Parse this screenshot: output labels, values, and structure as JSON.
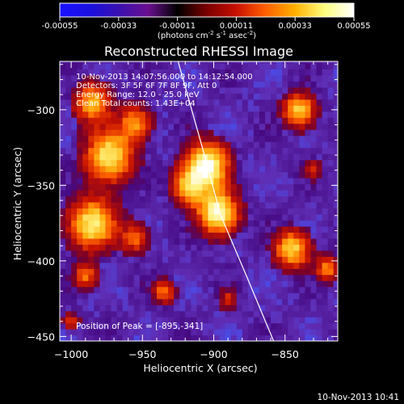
{
  "colorbar": {
    "ticks": [
      "-0.00055",
      "-0.00033",
      "-0.00011",
      "0.00011",
      "0.00033",
      "0.00055"
    ],
    "tick_values": [
      -0.00055,
      -0.00033,
      -0.00011,
      0.00011,
      0.00033,
      0.00055
    ],
    "unit_base": "(photons cm",
    "unit_e1": "-2",
    "unit_mid": " s",
    "unit_e2": "-1",
    "unit_mid2": " asec",
    "unit_e3": "-2",
    "unit_end": ")",
    "colors": [
      "#1a10ff",
      "#1a10e0",
      "#3a10b0",
      "#6a1090",
      "#000000",
      "#7a0000",
      "#c81000",
      "#ff6000",
      "#ffb000",
      "#ffff80",
      "#ffffff"
    ]
  },
  "chart_data": {
    "type": "heatmap",
    "title": "Reconstructed RHESSI Image",
    "xlabel": "Heliocentric X (arcsec)",
    "ylabel": "Heliocentric Y (arcsec)",
    "xlim": [
      -1008,
      -813
    ],
    "ylim": [
      -453,
      -268
    ],
    "x_ticks": [
      -1000,
      -950,
      -900,
      -850
    ],
    "x_tick_labels": [
      "−1000",
      "−950",
      "−900",
      "−850"
    ],
    "y_ticks": [
      -450,
      -400,
      -350,
      -300
    ],
    "y_tick_labels": [
      "−450",
      "−400",
      "−350",
      "−300"
    ],
    "value_range": [
      -0.00055,
      0.00055
    ],
    "sources": [
      {
        "x": -905,
        "y": -337,
        "sigma": 11,
        "amp": 1.0
      },
      {
        "x": -897,
        "y": -368,
        "sigma": 10,
        "amp": 0.95
      },
      {
        "x": -918,
        "y": -352,
        "sigma": 8,
        "amp": 0.6
      },
      {
        "x": -973,
        "y": -330,
        "sigma": 12,
        "amp": 0.85
      },
      {
        "x": -985,
        "y": -295,
        "sigma": 9,
        "amp": 0.7
      },
      {
        "x": -955,
        "y": -308,
        "sigma": 8,
        "amp": 0.55
      },
      {
        "x": -985,
        "y": -375,
        "sigma": 12,
        "amp": 0.85
      },
      {
        "x": -955,
        "y": -385,
        "sigma": 7,
        "amp": 0.45
      },
      {
        "x": -990,
        "y": -410,
        "sigma": 6,
        "amp": 0.5
      },
      {
        "x": -840,
        "y": -300,
        "sigma": 8,
        "amp": 0.75
      },
      {
        "x": -830,
        "y": -340,
        "sigma": 5,
        "amp": 0.35
      },
      {
        "x": -845,
        "y": -392,
        "sigma": 9,
        "amp": 0.75
      },
      {
        "x": -820,
        "y": -405,
        "sigma": 6,
        "amp": 0.55
      },
      {
        "x": -935,
        "y": -420,
        "sigma": 6,
        "amp": 0.5
      },
      {
        "x": -890,
        "y": -425,
        "sigma": 5,
        "amp": 0.35
      },
      {
        "x": -1000,
        "y": -440,
        "sigma": 4,
        "amp": 0.45
      }
    ],
    "limb": [
      [
        -925,
        -268
      ],
      [
        -908,
        -325
      ],
      [
        -895,
        -370
      ],
      [
        -877,
        -410
      ],
      [
        -858,
        -453
      ]
    ],
    "annotations": [
      "10-Nov-2013 14:07:56.000 to 14:12:54.000",
      "Detectors: 3F 5F 6F 7F 8F 9F, Att 0",
      "Energy Range: 12.0 - 25.0 keV",
      "Clean     Total counts: 1.43E+04"
    ],
    "peak_label": "Position of Peak = [-895,-341]"
  },
  "footer": {
    "timestamp": "10-Nov-2013 10:41"
  }
}
